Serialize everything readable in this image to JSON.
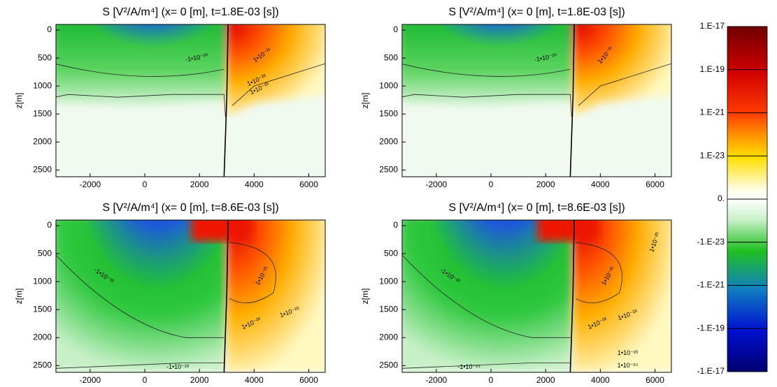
{
  "chart_data": [
    {
      "type": "heatmap",
      "title": "S [V²/A/m⁴] (x= 0 [m], t=1.8E-03 [s])",
      "y_label": "z[m]",
      "xlim": [
        -3250,
        6600
      ],
      "ylim": [
        2620,
        -100
      ],
      "xticks": [
        -2000,
        0,
        2000,
        4000,
        6000
      ],
      "yticks": [
        0,
        500,
        1000,
        1500,
        2000,
        2500
      ],
      "annotations": [
        "-1•10⁻²⁰",
        "1•10⁻²¹",
        "1•10⁻²²",
        "1•10⁻²³"
      ]
    },
    {
      "type": "heatmap",
      "title": "S [V²/A/m⁴] (x= 0 [m], t=1.8E-03 [s])",
      "y_label": "z[m]",
      "xlim": [
        -3250,
        6600
      ],
      "ylim": [
        2620,
        -100
      ],
      "xticks": [
        -2000,
        0,
        2000,
        4000,
        6000
      ],
      "yticks": [
        0,
        500,
        1000,
        1500,
        2000,
        2500
      ],
      "annotations": [
        "-1•10⁻²⁰",
        "1•10⁻²¹"
      ]
    },
    {
      "type": "heatmap",
      "title": "S [V²/A/m⁴] (x= 0 [m], t=8.6E-03 [s])",
      "y_label": "z[m]",
      "xlim": [
        -3250,
        6600
      ],
      "ylim": [
        2620,
        -100
      ],
      "xticks": [
        -2000,
        0,
        2000,
        4000,
        6000
      ],
      "yticks": [
        0,
        500,
        1000,
        1500,
        2000,
        2500
      ],
      "annotations": [
        "-1•10⁻²²",
        "1•10⁻²¹",
        "1•10⁻²²",
        "1•10⁻²³",
        "-1•10⁻²³"
      ]
    },
    {
      "type": "heatmap",
      "title": "S [V²/A/m⁴] (x= 0 [m], t=8.6E-03 [s])",
      "y_label": "z[m]",
      "xlim": [
        -3250,
        6600
      ],
      "ylim": [
        2620,
        -100
      ],
      "xticks": [
        -2000,
        0,
        2000,
        4000,
        6000
      ],
      "yticks": [
        0,
        500,
        1000,
        1500,
        2000,
        2500
      ],
      "annotations": [
        "-1•10⁻²²",
        "1•10⁻²¹",
        "1•10⁻²²",
        "1•10⁻²³",
        "1•10⁻²³",
        "1•10⁻²⁴",
        "-1•10⁻²⁴",
        "1•10⁻²³"
      ]
    },
    {
      "type": "colorbar",
      "scale": "symlog",
      "ylim": [
        -1e-17,
        1e-17
      ],
      "yticks": [
        {
          "value": 1e-17,
          "label": "1.E-17"
        },
        {
          "value": 1e-19,
          "label": "1.E-19"
        },
        {
          "value": 1e-21,
          "label": "1.E-21"
        },
        {
          "value": 1e-23,
          "label": "1.E-23"
        },
        {
          "value": 0,
          "label": "0."
        },
        {
          "value": -1e-23,
          "label": "-1.E-23"
        },
        {
          "value": -1e-21,
          "label": "-1.E-21"
        },
        {
          "value": -1e-19,
          "label": "-1.E-19"
        },
        {
          "value": -1e-17,
          "label": "-1.E-17"
        }
      ]
    }
  ]
}
